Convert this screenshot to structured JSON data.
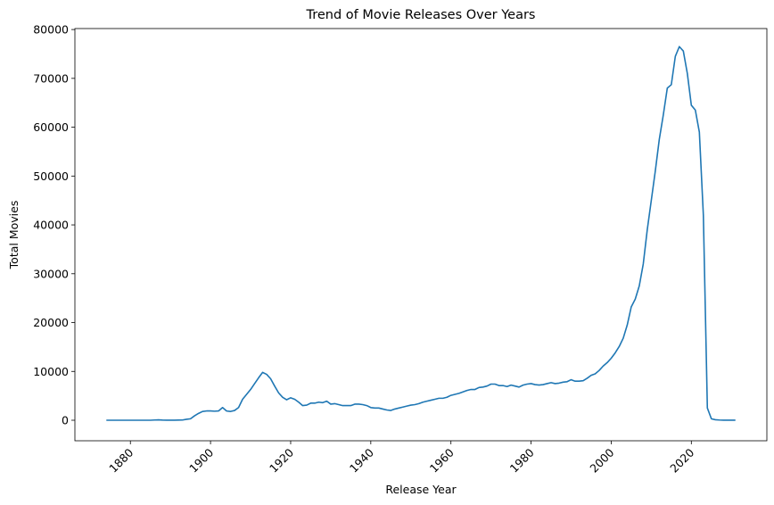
{
  "chart_data": {
    "type": "line",
    "title": "Trend of Movie Releases Over Years",
    "xlabel": "Release Year",
    "ylabel": "Total Movies",
    "color": "#1f77b4",
    "x": [
      1874,
      1875,
      1876,
      1877,
      1878,
      1879,
      1880,
      1881,
      1882,
      1883,
      1884,
      1885,
      1886,
      1887,
      1888,
      1889,
      1890,
      1891,
      1892,
      1893,
      1894,
      1895,
      1896,
      1897,
      1898,
      1899,
      1900,
      1901,
      1902,
      1903,
      1904,
      1905,
      1906,
      1907,
      1908,
      1909,
      1910,
      1911,
      1912,
      1913,
      1914,
      1915,
      1916,
      1917,
      1918,
      1919,
      1920,
      1921,
      1922,
      1923,
      1924,
      1925,
      1926,
      1927,
      1928,
      1929,
      1930,
      1931,
      1932,
      1933,
      1934,
      1935,
      1936,
      1937,
      1938,
      1939,
      1940,
      1941,
      1942,
      1943,
      1944,
      1945,
      1946,
      1947,
      1948,
      1949,
      1950,
      1951,
      1952,
      1953,
      1954,
      1955,
      1956,
      1957,
      1958,
      1959,
      1960,
      1961,
      1962,
      1963,
      1964,
      1965,
      1966,
      1967,
      1968,
      1969,
      1970,
      1971,
      1972,
      1973,
      1974,
      1975,
      1976,
      1977,
      1978,
      1979,
      1980,
      1981,
      1982,
      1983,
      1984,
      1985,
      1986,
      1987,
      1988,
      1989,
      1990,
      1991,
      1992,
      1993,
      1994,
      1995,
      1996,
      1997,
      1998,
      1999,
      2000,
      2001,
      2002,
      2003,
      2004,
      2005,
      2006,
      2007,
      2008,
      2009,
      2010,
      2011,
      2012,
      2013,
      2014,
      2015,
      2016,
      2017,
      2018,
      2019,
      2020,
      2021,
      2022,
      2023,
      2024,
      2025,
      2026,
      2027,
      2028,
      2029,
      2030,
      2031
    ],
    "values": [
      0,
      0,
      0,
      0,
      0,
      0,
      0,
      0,
      0,
      0,
      0,
      0,
      50,
      80,
      30,
      20,
      20,
      20,
      30,
      50,
      200,
      300,
      900,
      1400,
      1800,
      1900,
      1900,
      1850,
      1900,
      2600,
      1900,
      1800,
      2000,
      2600,
      4300,
      5300,
      6300,
      7500,
      8700,
      9800,
      9400,
      8500,
      7000,
      5600,
      4700,
      4200,
      4600,
      4300,
      3700,
      3000,
      3100,
      3500,
      3500,
      3700,
      3600,
      3900,
      3300,
      3400,
      3200,
      3000,
      3000,
      3000,
      3300,
      3300,
      3200,
      3000,
      2600,
      2500,
      2500,
      2300,
      2100,
      2000,
      2300,
      2500,
      2700,
      2900,
      3100,
      3200,
      3400,
      3700,
      3900,
      4100,
      4300,
      4500,
      4500,
      4700,
      5100,
      5300,
      5500,
      5800,
      6100,
      6300,
      6300,
      6700,
      6800,
      7000,
      7400,
      7400,
      7100,
      7100,
      6900,
      7200,
      7000,
      6800,
      7200,
      7400,
      7500,
      7300,
      7200,
      7300,
      7500,
      7700,
      7500,
      7600,
      7800,
      7900,
      8300,
      8000,
      8000,
      8100,
      8600,
      9200,
      9500,
      10200,
      11100,
      11800,
      12700,
      13800,
      15100,
      16800,
      19500,
      23200,
      24800,
      27500,
      32000,
      39000,
      45000,
      51000,
      57500,
      62500,
      68000,
      68700,
      74500,
      76500,
      75600,
      71000,
      64500,
      63500,
      59000,
      42000,
      2500,
      300,
      100,
      50,
      20,
      10,
      5,
      5
    ],
    "xlim": [
      1866.15,
      2038.85
    ],
    "xticks": [
      1880,
      1900,
      1920,
      1940,
      1960,
      1980,
      2000,
      2020
    ],
    "ylim": [
      -4200,
      80200
    ],
    "yticks": [
      0,
      10000,
      20000,
      30000,
      40000,
      50000,
      60000,
      70000,
      80000
    ]
  }
}
